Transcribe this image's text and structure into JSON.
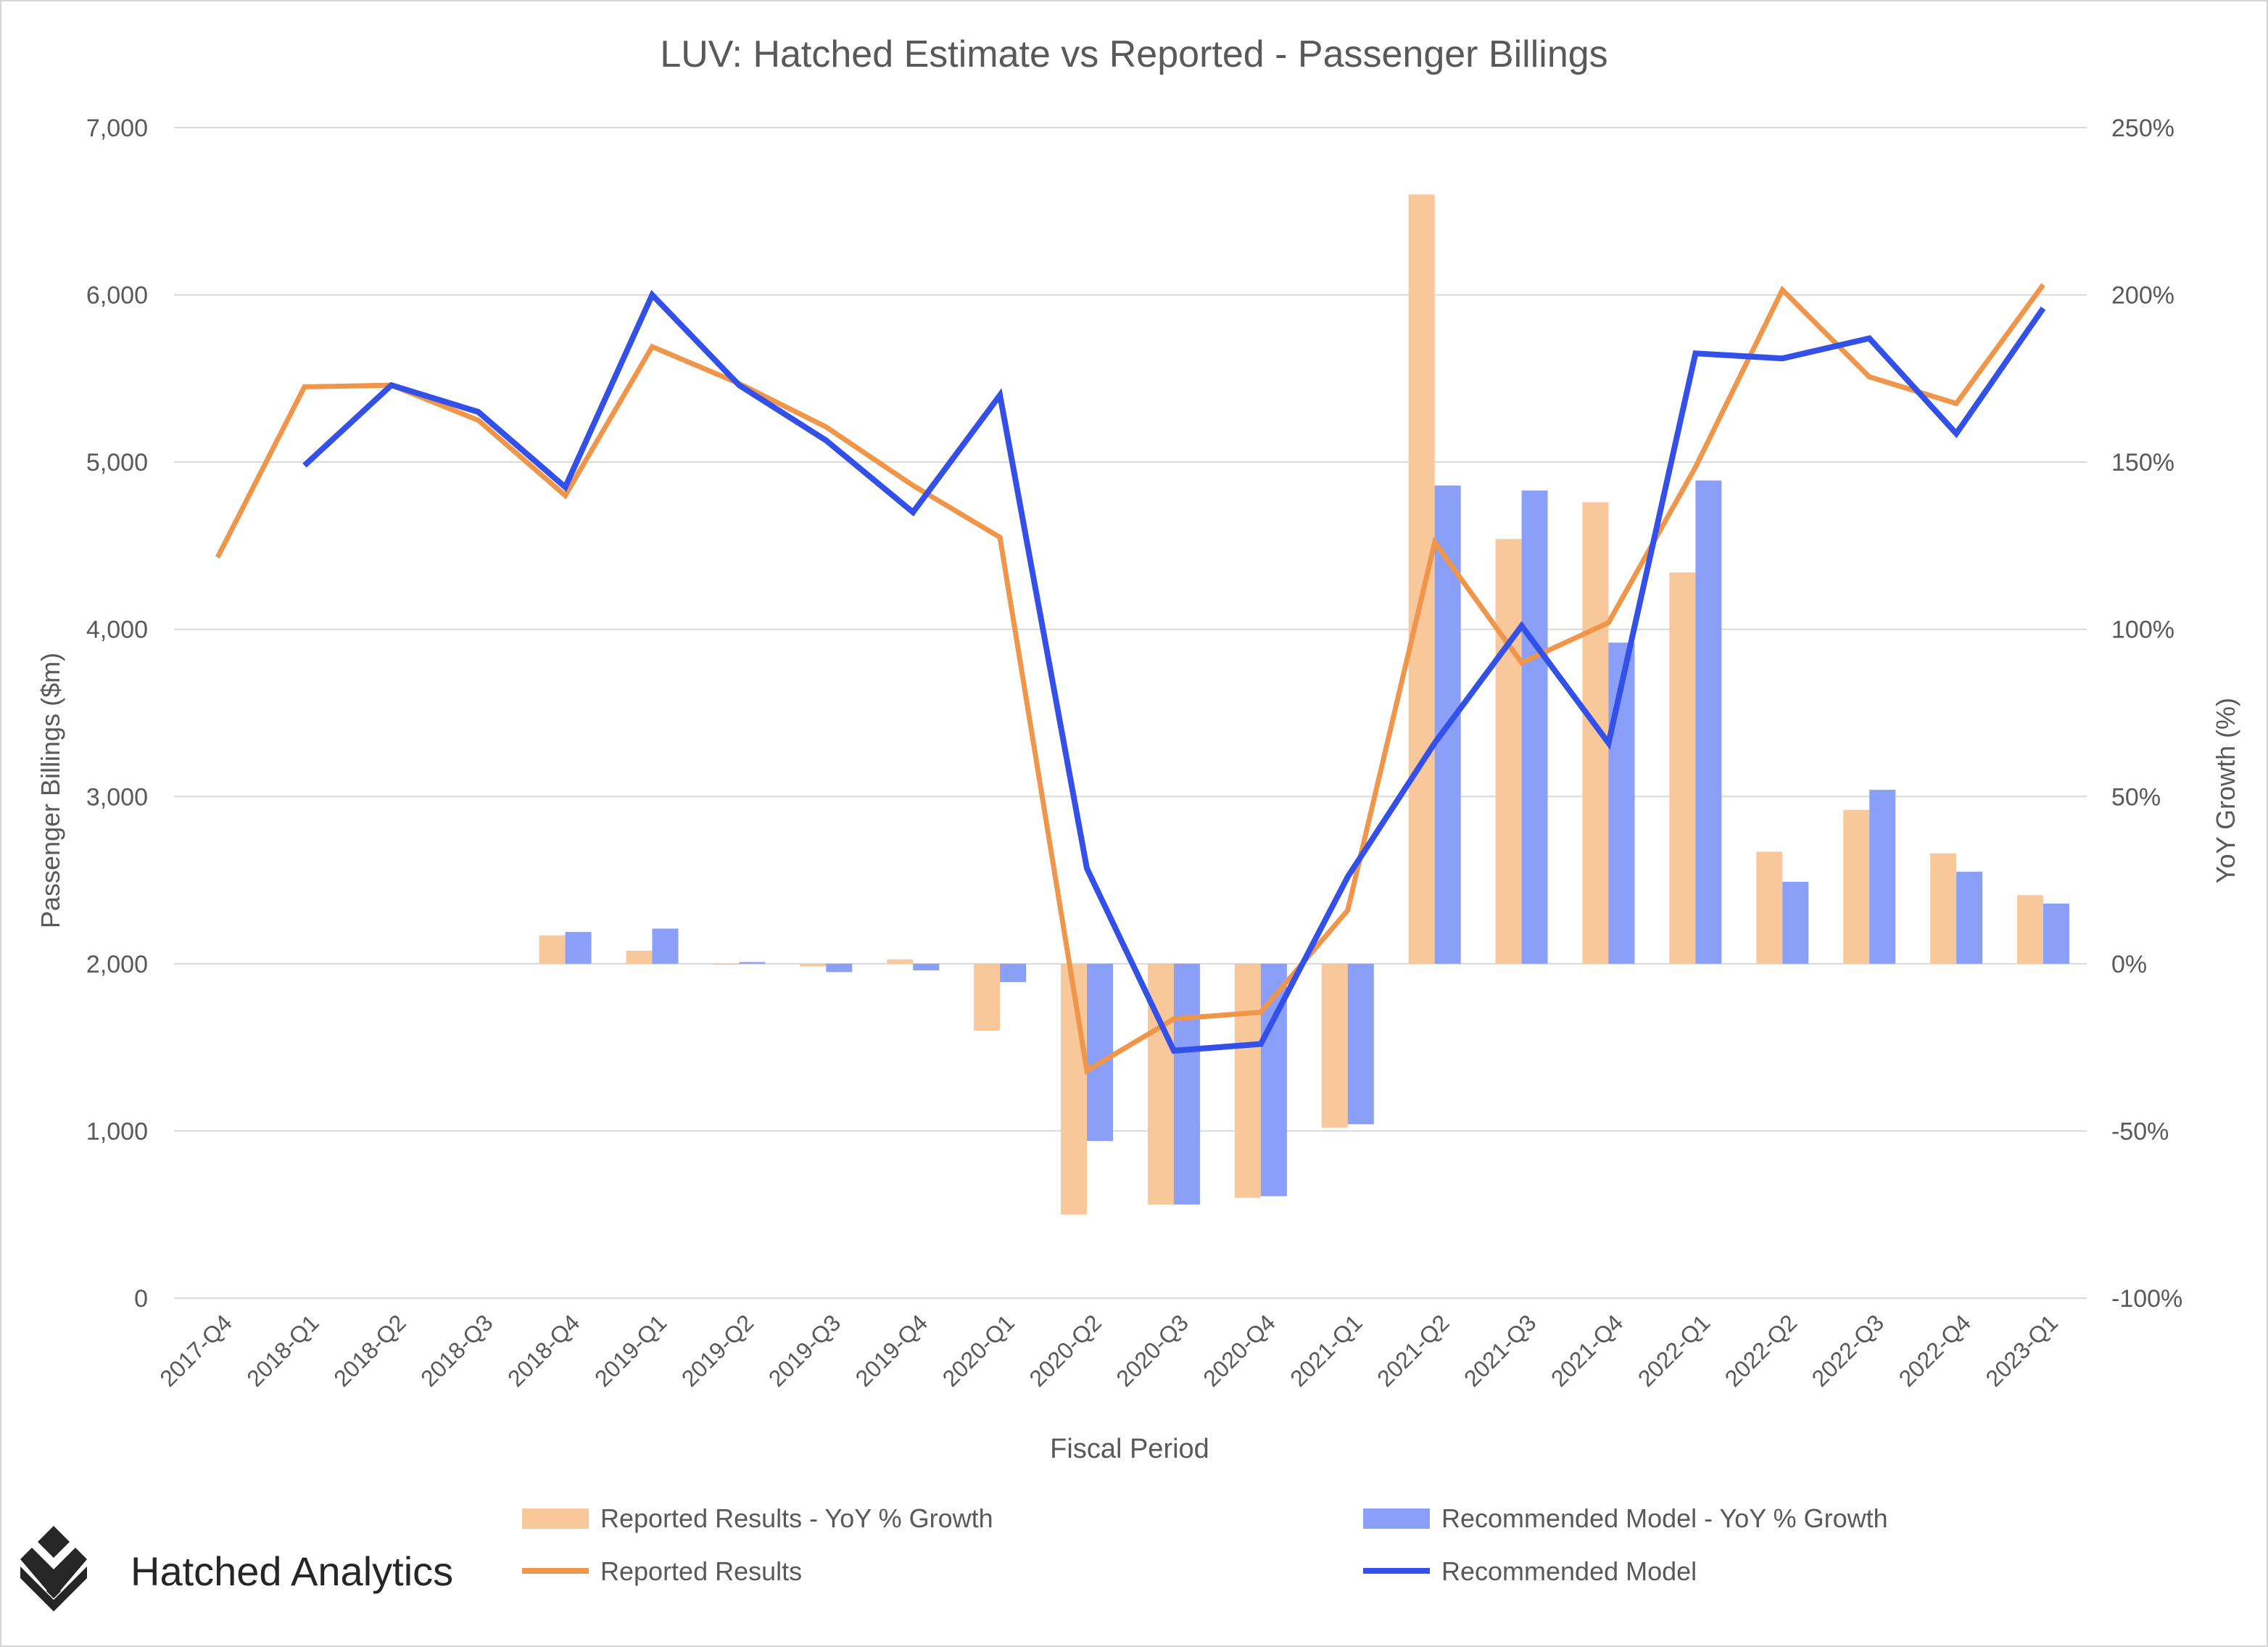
{
  "chart_data": {
    "type": "bar",
    "title": "LUV: Hatched Estimate vs Reported - Passenger Billings",
    "xlabel": "Fiscal Period",
    "ylabel": "Passenger Billings ($m)",
    "y2label": "YoY Growth (%)",
    "ylim": [
      0,
      7000
    ],
    "y2lim": [
      -100,
      250
    ],
    "grid": true,
    "legend_position": "bottom",
    "y_ticks": [
      "0",
      "1,000",
      "2,000",
      "3,000",
      "4,000",
      "5,000",
      "6,000",
      "7,000"
    ],
    "y_tick_values": [
      0,
      1000,
      2000,
      3000,
      4000,
      5000,
      6000,
      7000
    ],
    "y2_ticks": [
      "-100%",
      "-50%",
      "0%",
      "50%",
      "100%",
      "150%",
      "200%",
      "250%"
    ],
    "y2_tick_values": [
      -100,
      -50,
      0,
      50,
      100,
      150,
      200,
      250
    ],
    "categories": [
      "2017-Q4",
      "2018-Q1",
      "2018-Q2",
      "2018-Q3",
      "2018-Q4",
      "2019-Q1",
      "2019-Q2",
      "2019-Q3",
      "2019-Q4",
      "2020-Q1",
      "2020-Q2",
      "2020-Q3",
      "2020-Q4",
      "2021-Q1",
      "2021-Q2",
      "2021-Q3",
      "2021-Q4",
      "2022-Q1",
      "2022-Q2",
      "2022-Q3",
      "2022-Q4",
      "2023-Q1"
    ],
    "series": [
      {
        "name": "Reported Results - YoY % Growth",
        "kind": "bar",
        "axis": "right",
        "color": "#F8C79A",
        "values": [
          null,
          null,
          null,
          null,
          8.5,
          3.9,
          -0.3,
          -0.8,
          1.3,
          -20,
          -75,
          -72,
          -70,
          -49,
          230,
          127,
          138,
          117,
          33.5,
          46,
          33,
          20.5
        ]
      },
      {
        "name": "Recommended Model - YoY % Growth",
        "kind": "bar",
        "axis": "right",
        "color": "#8A9FF8",
        "values": [
          null,
          null,
          null,
          null,
          9.5,
          10.5,
          0.5,
          -2.5,
          -2,
          -5.5,
          -53,
          -72,
          -69.5,
          -48,
          143,
          141.5,
          96,
          144.5,
          24.5,
          52,
          27.5,
          18
        ]
      },
      {
        "name": "Reported Results",
        "kind": "line",
        "axis": "left",
        "color": "#F0964A",
        "values": [
          4430,
          5450,
          5460,
          5250,
          4800,
          5690,
          5470,
          5210,
          4860,
          4550,
          1360,
          1670,
          1710,
          2320,
          4520,
          3800,
          4040,
          4970,
          6030,
          5510,
          5350,
          6060
        ]
      },
      {
        "name": "Recommended Model",
        "kind": "line",
        "axis": "left",
        "color": "#3350E8",
        "values": [
          null,
          4980,
          5460,
          5300,
          4850,
          6000,
          5460,
          5130,
          4700,
          5400,
          2570,
          1480,
          1520,
          2520,
          3320,
          4020,
          3320,
          5650,
          5620,
          5740,
          5170,
          5920
        ]
      }
    ]
  },
  "branding": {
    "company_name": "Hatched Analytics",
    "logo_icon": "hatched-diamond-logo"
  }
}
